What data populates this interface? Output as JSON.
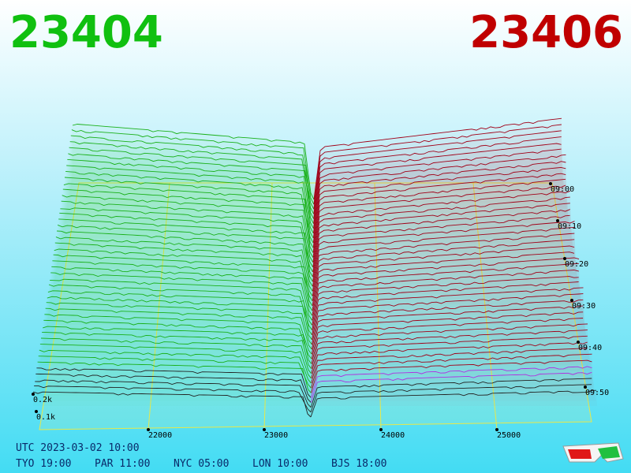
{
  "header": {
    "bid": "23404",
    "ask": "23406"
  },
  "axes": {
    "price_labels": [
      "22000",
      "23000",
      "24000",
      "25000"
    ],
    "time_labels": [
      "09:00",
      "09:10",
      "09:20",
      "09:30",
      "09:40",
      "09:50"
    ],
    "volume_labels": [
      "0.2k",
      "0.1k"
    ]
  },
  "footer": {
    "utc": "UTC 2023-03-02 10:00",
    "cities": [
      "TYO 19:00",
      "PAR 11:00",
      "NYC 05:00",
      "LON 10:00",
      "BJS 18:00"
    ]
  }
}
